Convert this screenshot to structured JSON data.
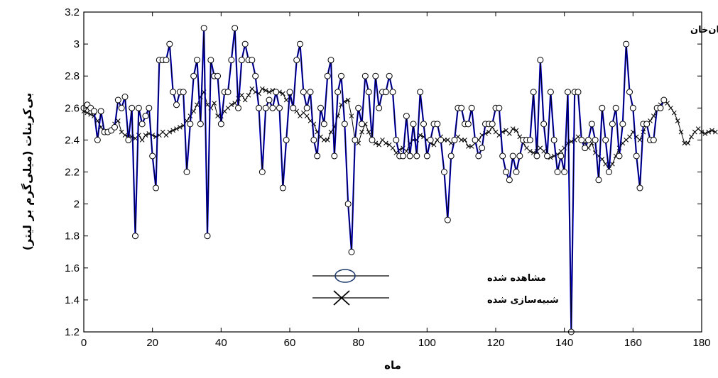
{
  "chart_data": {
    "type": "line",
    "title": "ایستگاه زمان‌خان",
    "xlabel": "ماه",
    "ylabel": "بی‌کربنات (میلی‌گرم بر لیتر)",
    "xlim": [
      0,
      180
    ],
    "ylim": [
      1.2,
      3.2
    ],
    "x_ticks": [
      "0",
      "20",
      "40",
      "60",
      "80",
      "100",
      "120",
      "140",
      "160",
      "180"
    ],
    "y_ticks": [
      "1.2",
      "1.4",
      "1.6",
      "1.8",
      "2",
      "2.2",
      "2.4",
      "2.6",
      "2.8",
      "3",
      "3.2"
    ],
    "grid": false,
    "legend_position": "lower-center",
    "series": [
      {
        "name": "مشاهده شده",
        "marker": "circle",
        "color": "#000000",
        "accent": "#0000ff",
        "values": [
          2.6,
          2.62,
          2.6,
          2.58,
          2.4,
          2.58,
          2.45,
          2.45,
          2.46,
          2.48,
          2.65,
          2.6,
          2.67,
          2.4,
          2.6,
          1.8,
          2.6,
          2.5,
          2.55,
          2.6,
          2.3,
          2.1,
          2.9,
          2.9,
          2.9,
          3.0,
          2.7,
          2.62,
          2.7,
          2.7,
          2.2,
          2.5,
          2.8,
          2.9,
          2.5,
          3.1,
          1.8,
          2.9,
          2.8,
          2.8,
          2.5,
          2.7,
          2.7,
          2.9,
          3.1,
          2.6,
          2.9,
          3.0,
          2.9,
          2.9,
          2.8,
          2.6,
          2.2,
          2.6,
          2.65,
          2.6,
          2.7,
          2.6,
          2.1,
          2.4,
          2.7,
          2.6,
          2.9,
          3.0,
          2.7,
          2.6,
          2.7,
          2.4,
          2.3,
          2.6,
          2.5,
          2.8,
          2.9,
          2.3,
          2.7,
          2.8,
          2.5,
          2.0,
          1.7,
          2.4,
          2.6,
          2.5,
          2.8,
          2.7,
          2.4,
          2.8,
          2.6,
          2.7,
          2.7,
          2.8,
          2.7,
          2.4,
          2.3,
          2.3,
          2.55,
          2.3,
          2.5,
          2.3,
          2.7,
          2.5,
          2.3,
          2.4,
          2.5,
          2.5,
          2.4,
          2.2,
          1.9,
          2.3,
          2.4,
          2.6,
          2.6,
          2.5,
          2.5,
          2.6,
          2.4,
          2.3,
          2.35,
          2.5,
          2.5,
          2.5,
          2.6,
          2.6,
          2.3,
          2.2,
          2.15,
          2.3,
          2.2,
          2.3,
          2.4,
          2.4,
          2.4,
          2.7,
          2.3,
          2.9,
          2.5,
          2.3,
          2.7,
          2.4,
          2.2,
          2.3,
          2.2,
          2.7,
          1.2,
          2.7,
          2.7,
          2.4,
          2.35,
          2.4,
          2.5,
          2.4,
          2.15,
          2.6,
          2.4,
          2.2,
          2.5,
          2.6,
          2.3,
          2.5,
          3.0,
          2.7,
          2.6,
          2.3,
          2.1,
          2.5,
          2.5,
          2.4,
          2.4,
          2.6,
          2.6,
          2.65
        ]
      },
      {
        "name": "شبیه‌سازی شده",
        "marker": "x",
        "color": "#000000",
        "values": [
          2.58,
          2.57,
          2.56,
          2.55,
          2.52,
          2.48,
          2.45,
          2.45,
          2.46,
          2.5,
          2.52,
          2.45,
          2.43,
          2.42,
          2.42,
          2.41,
          2.43,
          2.4,
          2.43,
          2.44,
          2.43,
          2.42,
          2.43,
          2.45,
          2.43,
          2.45,
          2.46,
          2.47,
          2.48,
          2.49,
          2.52,
          2.55,
          2.58,
          2.62,
          2.67,
          2.7,
          2.62,
          2.6,
          2.63,
          2.55,
          2.55,
          2.58,
          2.6,
          2.62,
          2.63,
          2.66,
          2.68,
          2.65,
          2.68,
          2.72,
          2.7,
          2.69,
          2.72,
          2.71,
          2.7,
          2.71,
          2.7,
          2.7,
          2.69,
          2.65,
          2.67,
          2.6,
          2.58,
          2.55,
          2.57,
          2.55,
          2.52,
          2.5,
          2.45,
          2.42,
          2.4,
          2.4,
          2.45,
          2.48,
          2.55,
          2.62,
          2.64,
          2.65,
          2.55,
          2.4,
          2.38,
          2.45,
          2.5,
          2.45,
          2.4,
          2.38,
          2.37,
          2.4,
          2.38,
          2.37,
          2.35,
          2.32,
          2.34,
          2.35,
          2.33,
          2.38,
          2.4,
          2.4,
          2.43,
          2.42,
          2.4,
          2.38,
          2.37,
          2.4,
          2.42,
          2.4,
          2.4,
          2.38,
          2.4,
          2.42,
          2.4,
          2.4,
          2.36,
          2.36,
          2.38,
          2.4,
          2.43,
          2.44,
          2.45,
          2.48,
          2.45,
          2.43,
          2.45,
          2.46,
          2.44,
          2.47,
          2.46,
          2.42,
          2.38,
          2.35,
          2.33,
          2.32,
          2.33,
          2.35,
          2.33,
          2.3,
          2.29,
          2.3,
          2.31,
          2.33,
          2.35,
          2.38,
          2.39,
          2.4,
          2.42,
          2.4,
          2.38,
          2.35,
          2.38,
          2.32,
          2.3,
          2.28,
          2.25,
          2.22,
          2.25,
          2.3,
          2.35,
          2.38,
          2.4,
          2.42,
          2.45,
          2.42,
          2.4,
          2.45,
          2.5,
          2.52,
          2.55,
          2.6,
          2.62,
          2.65,
          2.63,
          2.6,
          2.57,
          2.52,
          2.45,
          2.38,
          2.38,
          2.42,
          2.45,
          2.47,
          2.45,
          2.44,
          2.45,
          2.46,
          2.45
        ]
      }
    ]
  }
}
